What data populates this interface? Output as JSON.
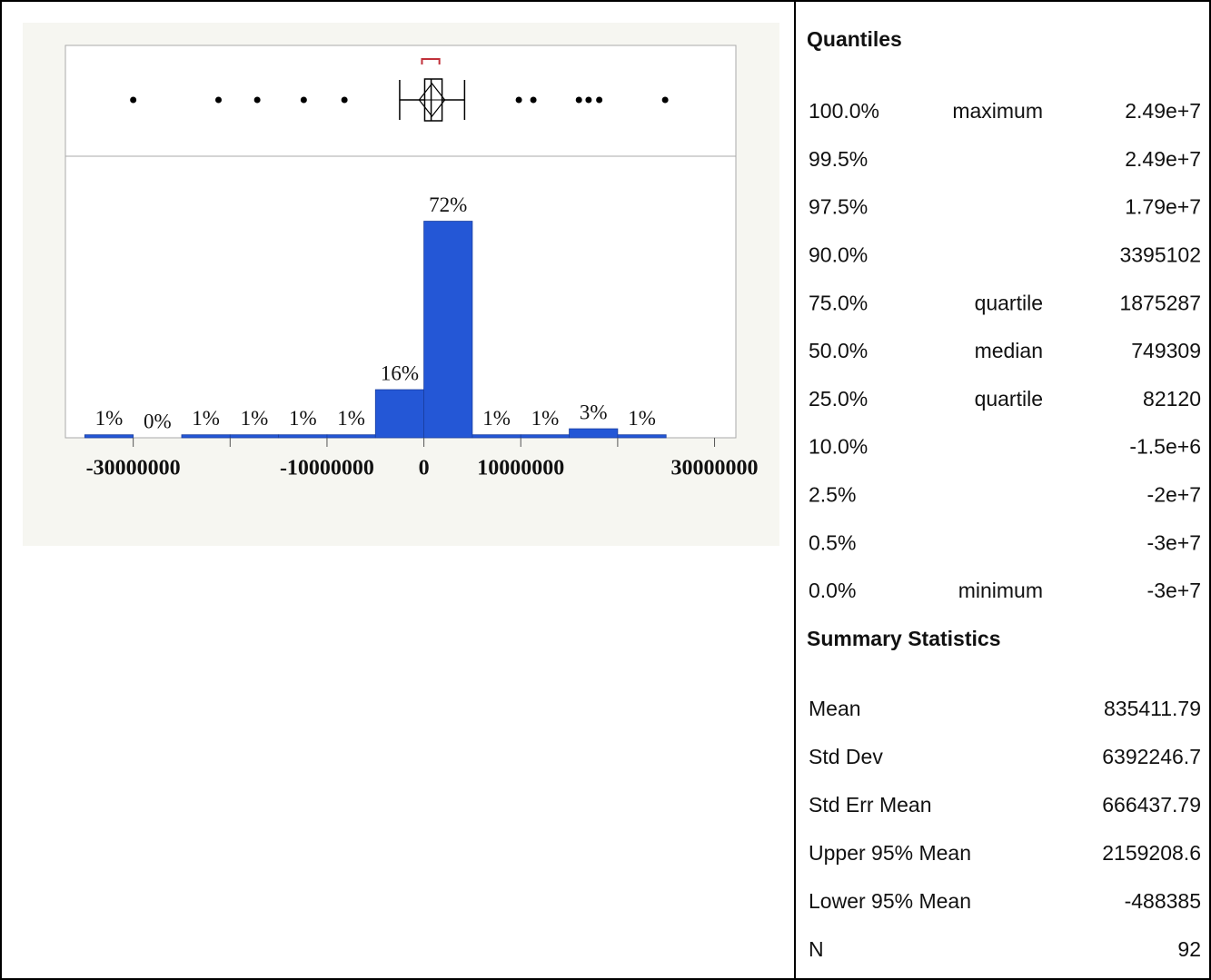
{
  "chart_data": {
    "type": "histogram",
    "bins": [
      -35000000,
      -30000000,
      -25000000,
      -20000000,
      -15000000,
      -10000000,
      -5000000,
      0,
      5000000,
      10000000,
      15000000,
      20000000,
      25000000
    ],
    "values": [
      1,
      0,
      1,
      1,
      1,
      1,
      16,
      72,
      1,
      1,
      3,
      1
    ],
    "value_labels": [
      "1%",
      "0%",
      "1%",
      "1%",
      "1%",
      "1%",
      "16%",
      "72%",
      "1%",
      "1%",
      "3%",
      "1%"
    ],
    "color": "#2457d6",
    "xlim": [
      -37000000,
      32200000
    ],
    "ylim": [
      0,
      93.6
    ],
    "xticks": [
      -30000000,
      -10000000,
      0,
      10000000,
      30000000
    ],
    "minor_xticks": [
      -20000000,
      20000000
    ],
    "boxplot": {
      "whiskers": [
        -2500000,
        4200000
      ],
      "outliers": [
        -30000000,
        -21200000,
        -17200000,
        -12400000,
        -8200000,
        9800000,
        11300000,
        16000000,
        17000000,
        18100000,
        24900000
      ],
      "shortest_half": [
        -200000,
        1600000
      ],
      "shortest_half_color": "#c0303a"
    }
  },
  "quantiles": {
    "title": "Quantiles",
    "rows": [
      {
        "percent": "100.0%",
        "label": "maximum",
        "value": {
          "value": 24900000,
          "label": "2.49e+7"
        }
      },
      {
        "percent": "99.5%",
        "value": {
          "value": 24900000,
          "label": "2.49e+7"
        }
      },
      {
        "percent": "97.5%",
        "value": {
          "value": 17900000,
          "label": "1.79e+7"
        }
      },
      {
        "percent": "90.0%",
        "value": 3395102
      },
      {
        "percent": "75.0%",
        "label": "quartile",
        "value": 1875287
      },
      {
        "percent": "50.0%",
        "label": "median",
        "value": 749309
      },
      {
        "percent": "25.0%",
        "label": "quartile",
        "value": 82120
      },
      {
        "percent": "10.0%",
        "value": {
          "value": -1500000,
          "label": "-1.5e+6"
        }
      },
      {
        "percent": "2.5%",
        "value": {
          "value": -20000000,
          "label": "-2e+7"
        }
      },
      {
        "percent": "0.5%",
        "value": {
          "value": -30000000,
          "label": "-3e+7"
        }
      },
      {
        "percent": "0.0%",
        "label": "minimum",
        "value": {
          "value": -30000000,
          "label": "-3e+7"
        }
      }
    ]
  },
  "summary_statistics": {
    "title": "Summary Statistics",
    "rows": [
      {
        "name": "Mean",
        "value": 835411.79
      },
      {
        "name": "Std Dev",
        "value": 6392246.7
      },
      {
        "name": "Std Err Mean",
        "value": 666437.79
      },
      {
        "name": "Upper 95% Mean",
        "value": 2159208.6
      },
      {
        "name": "Lower 95% Mean",
        "value": -488385
      },
      {
        "name": "N",
        "value": 92
      }
    ]
  }
}
